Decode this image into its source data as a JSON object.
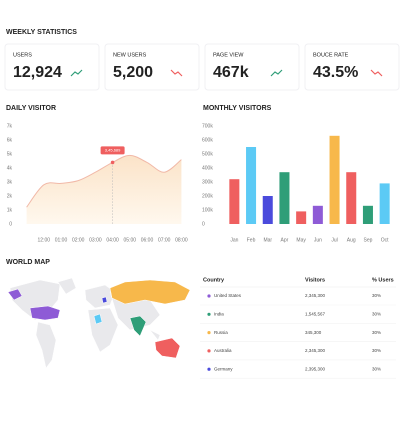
{
  "header": {
    "title": "WEEKLY STATISTICS"
  },
  "stats": [
    {
      "label": "USERS",
      "value": "12,924",
      "trend": "up"
    },
    {
      "label": "NEW USERS",
      "value": "5,200",
      "trend": "down"
    },
    {
      "label": "PAGE VIEW",
      "value": "467k",
      "trend": "up"
    },
    {
      "label": "BOUCE RATE",
      "value": "43.5%",
      "trend": "down"
    }
  ],
  "chart_data": [
    {
      "type": "area",
      "title": "DAILY VISITOR",
      "categories": [
        null,
        "12:00",
        "01:00",
        "02:00",
        "03:00",
        "04:00",
        "05:00",
        "06:00",
        "07:00",
        "08:00"
      ],
      "values": [
        1200,
        2800,
        2900,
        3100,
        3700,
        4400,
        4900,
        4400,
        3700,
        4600
      ],
      "color": "#f1b9a8",
      "annotation": {
        "text": "3,45,689",
        "category_index": 5
      },
      "ylim": [
        0,
        7000
      ],
      "yticks": [
        0,
        {
          "value": 1000,
          "label": "1k"
        },
        {
          "value": 2000,
          "label": "2k"
        },
        {
          "value": 3000,
          "label": "3k"
        },
        {
          "value": 4000,
          "label": "4k"
        },
        {
          "value": 5000,
          "label": "5k"
        },
        {
          "value": 6000,
          "label": "6k"
        },
        {
          "value": 7000,
          "label": "7k"
        }
      ],
      "grid": false
    },
    {
      "type": "bar",
      "title": "MONTHLY VISITORS",
      "categories": [
        "Jan",
        "Feb",
        "Mar",
        "Apr",
        "May",
        "Jun",
        "Jul",
        "Aug",
        "Sep",
        "Oct"
      ],
      "values": [
        320000,
        550000,
        200000,
        370000,
        90000,
        130000,
        630000,
        370000,
        130000,
        290000
      ],
      "colors": [
        "#ef5f5f",
        "#5ccaf5",
        "#4b4bdc",
        "#2f9e78",
        "#ef5f5f",
        "#8e5bd6",
        "#f7b84b",
        "#ef5f5f",
        "#2f9e78",
        "#5ccaf5"
      ],
      "ylim": [
        0,
        700000
      ],
      "yticks": [
        0,
        {
          "value": 100000,
          "label": "100k"
        },
        {
          "value": 200000,
          "label": "200k"
        },
        {
          "value": 300000,
          "label": "300k"
        },
        {
          "value": 400000,
          "label": "400k"
        },
        {
          "value": 500000,
          "label": "500k"
        },
        {
          "value": 600000,
          "label": "600k"
        },
        {
          "value": 700000,
          "label": "700k"
        }
      ],
      "grid": false
    }
  ],
  "world_map": {
    "title": "WORLD MAP"
  },
  "table": {
    "columns": [
      "Country",
      "Visitors",
      "% Users"
    ],
    "rows": [
      {
        "color": "#8e5bd6",
        "cells": [
          "United States",
          "2,345,300",
          "30%"
        ]
      },
      {
        "color": "#2f9e78",
        "cells": [
          "India",
          "1,545,567",
          "30%"
        ]
      },
      {
        "color": "#f7b84b",
        "cells": [
          "Russia",
          "345,300",
          "30%"
        ]
      },
      {
        "color": "#ef5f5f",
        "cells": [
          "Australia",
          "2,345,300",
          "30%"
        ]
      },
      {
        "color": "#4b4bdc",
        "cells": [
          "Germany",
          "2,395,300",
          "30%"
        ]
      }
    ]
  }
}
